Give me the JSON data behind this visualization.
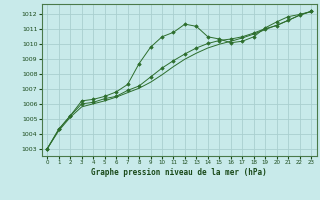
{
  "background_color": "#c8eaea",
  "grid_color": "#aacfcf",
  "line_color": "#2d6e2d",
  "marker_color": "#2d6e2d",
  "title": "Graphe pression niveau de la mer (hPa)",
  "xlim": [
    -0.5,
    23.5
  ],
  "ylim": [
    1002.5,
    1012.7
  ],
  "yticks": [
    1003,
    1004,
    1005,
    1006,
    1007,
    1008,
    1009,
    1010,
    1011,
    1012
  ],
  "xticks": [
    0,
    1,
    2,
    3,
    4,
    5,
    6,
    7,
    8,
    9,
    10,
    11,
    12,
    13,
    14,
    15,
    16,
    17,
    18,
    19,
    20,
    21,
    22,
    23
  ],
  "series1_x": [
    0,
    1,
    2,
    3,
    4,
    5,
    6,
    7,
    8,
    9,
    10,
    11,
    12,
    13,
    14,
    15,
    16,
    17,
    18,
    19,
    20,
    21,
    22,
    23
  ],
  "series1_y": [
    1003.0,
    1004.3,
    1005.2,
    1006.2,
    1006.3,
    1006.5,
    1006.8,
    1007.3,
    1008.7,
    1009.8,
    1010.5,
    1010.8,
    1011.35,
    1011.2,
    1010.5,
    1010.35,
    1010.1,
    1010.2,
    1010.5,
    1011.1,
    1011.5,
    1011.85,
    1012.0,
    1012.2
  ],
  "series2_x": [
    0,
    1,
    2,
    3,
    4,
    5,
    6,
    7,
    8,
    9,
    10,
    11,
    12,
    13,
    14,
    15,
    16,
    17,
    18,
    19,
    20,
    21,
    22,
    23
  ],
  "series2_y": [
    1003.0,
    1004.3,
    1005.2,
    1006.0,
    1006.1,
    1006.35,
    1006.5,
    1006.9,
    1007.2,
    1007.8,
    1008.4,
    1008.9,
    1009.35,
    1009.75,
    1010.05,
    1010.25,
    1010.35,
    1010.5,
    1010.75,
    1011.05,
    1011.25,
    1011.6,
    1011.95,
    1012.2
  ],
  "series3_x": [
    0,
    1,
    2,
    3,
    4,
    5,
    6,
    7,
    8,
    9,
    10,
    11,
    12,
    13,
    14,
    15,
    16,
    17,
    18,
    19,
    20,
    21,
    22,
    23
  ],
  "series3_y": [
    1003.0,
    1004.2,
    1005.1,
    1005.8,
    1006.0,
    1006.2,
    1006.45,
    1006.75,
    1007.05,
    1007.45,
    1007.95,
    1008.5,
    1009.0,
    1009.4,
    1009.75,
    1010.0,
    1010.2,
    1010.42,
    1010.68,
    1010.98,
    1011.28,
    1011.6,
    1011.95,
    1012.2
  ]
}
